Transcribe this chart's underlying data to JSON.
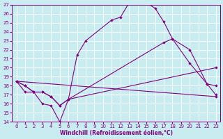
{
  "xlabel": "Windchill (Refroidissement éolien,°C)",
  "xlim": [
    -0.5,
    23.5
  ],
  "ylim": [
    14,
    27
  ],
  "xticks": [
    0,
    1,
    2,
    3,
    4,
    5,
    6,
    7,
    8,
    9,
    10,
    11,
    12,
    13,
    14,
    15,
    16,
    17,
    18,
    19,
    20,
    21,
    22,
    23
  ],
  "yticks": [
    14,
    15,
    16,
    17,
    18,
    19,
    20,
    21,
    22,
    23,
    24,
    25,
    26,
    27
  ],
  "background_color": "#c8ecf0",
  "line_color": "#800080",
  "grid_color": "#ffffff",
  "lines": [
    {
      "x": [
        0,
        1,
        2,
        3,
        4,
        5,
        6,
        7,
        8,
        11,
        12,
        13,
        14,
        15,
        16,
        17,
        18,
        20,
        22,
        23
      ],
      "y": [
        18.5,
        18.0,
        17.3,
        17.3,
        16.8,
        15.8,
        16.5,
        21.4,
        23.0,
        25.3,
        25.6,
        27.2,
        27.2,
        27.2,
        26.6,
        25.1,
        23.2,
        20.5,
        18.2,
        17.0
      ]
    },
    {
      "x": [
        0,
        1,
        2,
        3,
        4,
        5,
        6,
        17,
        18,
        20,
        22,
        23
      ],
      "y": [
        18.5,
        18.0,
        17.3,
        17.3,
        16.8,
        15.8,
        16.5,
        22.8,
        23.2,
        22.0,
        18.2,
        18.0
      ]
    },
    {
      "x": [
        0,
        23
      ],
      "y": [
        18.5,
        16.8
      ]
    },
    {
      "x": [
        0,
        1,
        2,
        3,
        4,
        5,
        6,
        23
      ],
      "y": [
        18.5,
        17.3,
        17.3,
        16.0,
        15.8,
        14.0,
        16.5,
        20.0
      ]
    }
  ]
}
